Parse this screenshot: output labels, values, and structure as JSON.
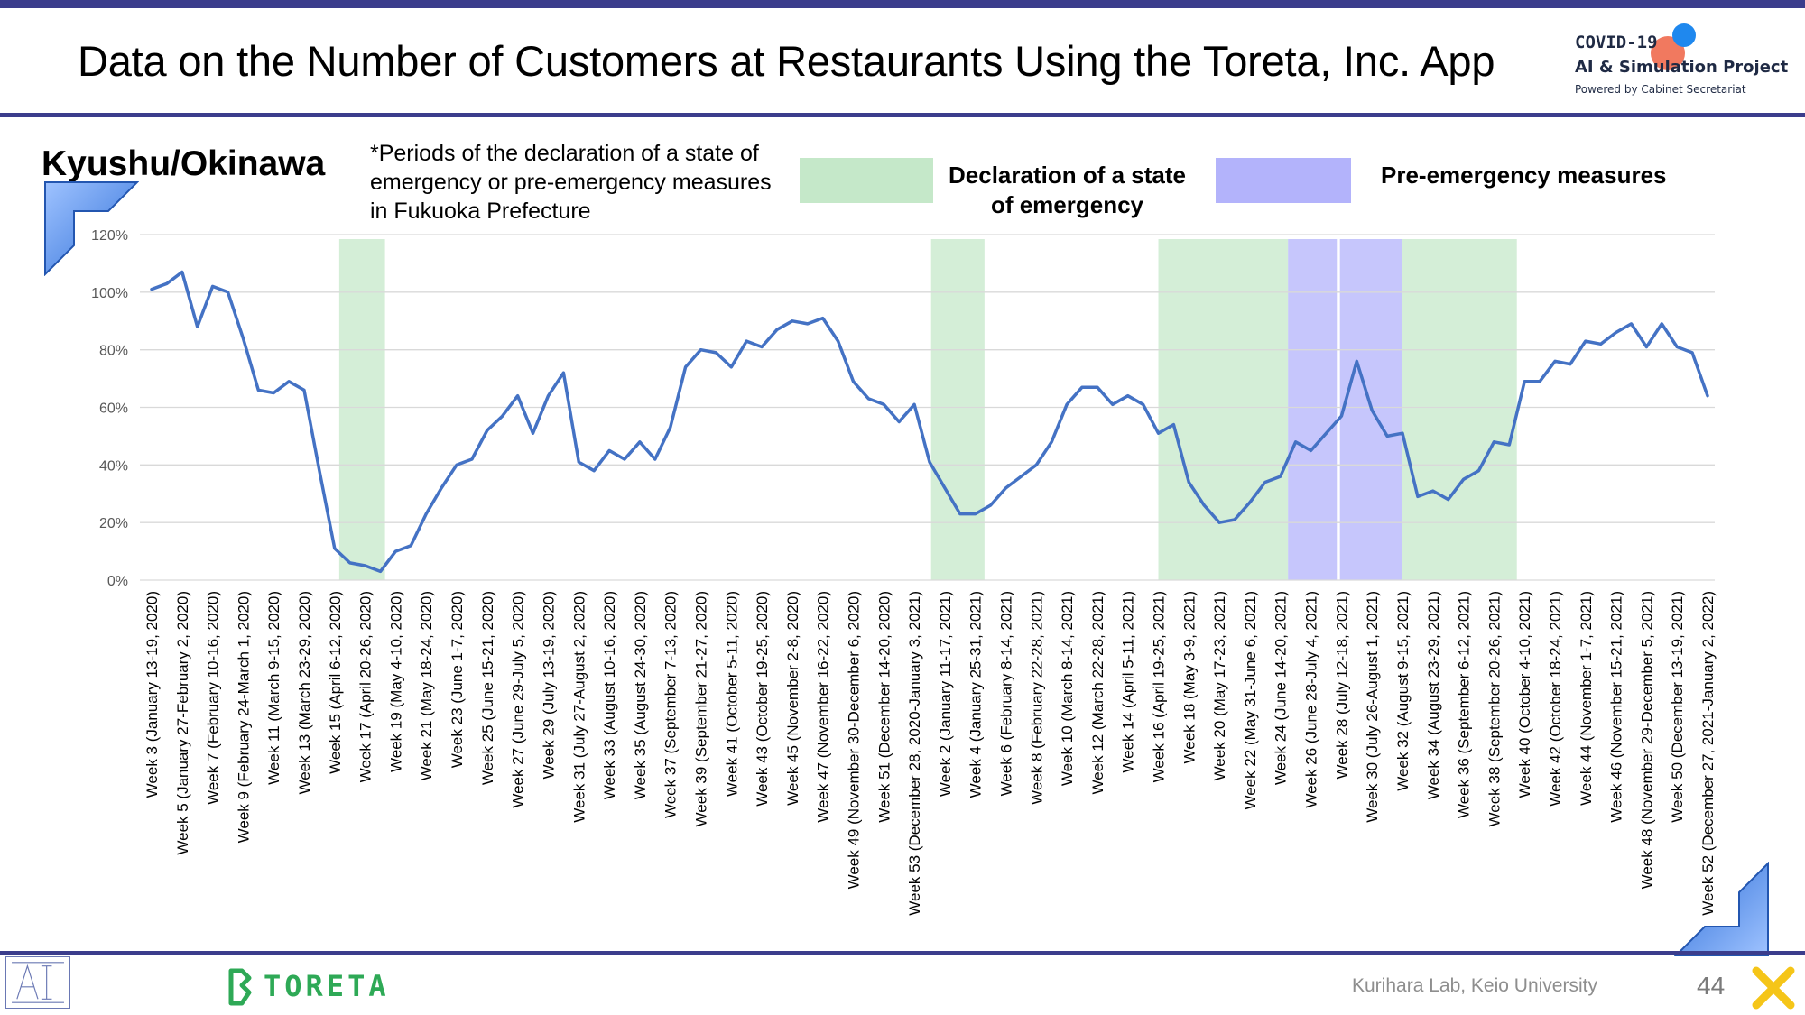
{
  "page": {
    "title": "Data on the Number of Customers at Restaurants Using the Toreta, Inc. App",
    "region": "Kyushu/Okinawa",
    "note": "*Periods of the declaration of a state of emergency or pre-emergency measures in Fukuoka Prefecture",
    "legend_emergency": "Declaration of a state of emergency",
    "legend_pre": "Pre-emergency measures",
    "footer_lab": "Kurihara Lab, Keio University",
    "page_number": "44",
    "toreta_brand": "TORETA",
    "logo_line1": "COVID-19",
    "logo_line2": "AI & Simulation Project",
    "logo_line3": "Powered by Cabinet Secretariat"
  },
  "colors": {
    "line": "#4472c4",
    "emergency": "#c5e8c9",
    "pre_emergency": "#b3b3fb",
    "accent": "#3b3d8c",
    "brand_green": "#2ea956"
  },
  "chart_data": {
    "type": "line",
    "ylim": [
      0,
      120
    ],
    "yticks": [
      "0%",
      "20%",
      "40%",
      "60%",
      "80%",
      "100%",
      "120%"
    ],
    "ytick_values": [
      0,
      20,
      40,
      60,
      80,
      100,
      120
    ],
    "grid": true,
    "x_tick_labels": [
      "Week 3 (January 13-19, 2020)",
      "Week 5 (January 27-February 2, 2020)",
      "Week 7 (February 10-16, 2020)",
      "Week 9 (February 24-March 1, 2020)",
      "Week 11 (March 9-15, 2020)",
      "Week 13 (March 23-29, 2020)",
      "Week 15 (April 6-12, 2020)",
      "Week 17 (April 20-26, 2020)",
      "Week 19 (May 4-10, 2020)",
      "Week 21 (May 18-24, 2020)",
      "Week 23 (June 1-7, 2020)",
      "Week 25 (June 15-21, 2020)",
      "Week 27 (June 29-July 5, 2020)",
      "Week 29 (July 13-19, 2020)",
      "Week 31 (July 27-August 2, 2020)",
      "Week 33 (August 10-16, 2020)",
      "Week 35 (August 24-30, 2020)",
      "Week 37 (September 7-13, 2020)",
      "Week 39 (September 21-27, 2020)",
      "Week 41 (October 5-11, 2020)",
      "Week 43 (October 19-25, 2020)",
      "Week 45 (November 2-8, 2020)",
      "Week 47 (November 16-22, 2020)",
      "Week 49 (November 30-December 6, 2020)",
      "Week 51 (December 14-20, 2020)",
      "Week 53 (December 28, 2020-January 3, 2021)",
      "Week 2 (January 11-17, 2021)",
      "Week 4 (January 25-31, 2021)",
      "Week 6 (February 8-14, 2021)",
      "Week 8 (February 22-28, 2021)",
      "Week 10 (March 8-14, 2021)",
      "Week 12 (March 22-28, 2021)",
      "Week 14 (April 5-11, 2021)",
      "Week 16 (April 19-25, 2021)",
      "Week 18 (May 3-9, 2021)",
      "Week 20 (May 17-23, 2021)",
      "Week 22 (May 31-June 6, 2021)",
      "Week 24 (June 14-20, 2021)",
      "Week 26 (June 28-July 4, 2021)",
      "Week 28 (July 12-18, 2021)",
      "Week 30 (July 26-August 1, 2021)",
      "Week 32 (August 9-15, 2021)",
      "Week 34 (August 23-29, 2021)",
      "Week 36 (September 6-12, 2021)",
      "Week 38 (September 20-26, 2021)",
      "Week 40 (October 4-10, 2021)",
      "Week 42 (October 18-24, 2021)",
      "Week 44 (November 1-7, 2021)",
      "Week 46 (November 15-21, 2021)",
      "Week 48 (November 29-December 5, 2021)",
      "Week 50 (December 13-19, 2021)",
      "Week 52 (December 27, 2021-January 2, 2022)"
    ],
    "series": [
      {
        "values": [
          101,
          103,
          107,
          88,
          102,
          100,
          84,
          66,
          65,
          69,
          66,
          38,
          11,
          6,
          5,
          3,
          10,
          12,
          23,
          32,
          40,
          42,
          52,
          57,
          64,
          51,
          64,
          72,
          41,
          38,
          45,
          42,
          48,
          42,
          53,
          74,
          80,
          79,
          74,
          83,
          81,
          87,
          90,
          89,
          91,
          83,
          69,
          63,
          61,
          55,
          61,
          41,
          32,
          23,
          23,
          26,
          32,
          36,
          40,
          48,
          61,
          67,
          67,
          61,
          64,
          61,
          51,
          54,
          34,
          26,
          20,
          21,
          27,
          34,
          36,
          48,
          45,
          51,
          57,
          76,
          59,
          50,
          51,
          29,
          31,
          28,
          35,
          38,
          48,
          47,
          69,
          69,
          76,
          75,
          83,
          82,
          86,
          89,
          81,
          89,
          81,
          79,
          64
        ]
      }
    ],
    "shaded_periods": [
      {
        "type": "emergency",
        "from": 12.3,
        "to": 15.3
      },
      {
        "type": "emergency",
        "from": 51.1,
        "to": 54.6
      },
      {
        "type": "emergency",
        "from": 66.0,
        "to": 74.5
      },
      {
        "type": "pre_emergency",
        "from": 74.5,
        "to": 77.7
      },
      {
        "type": "pre_emergency",
        "from": 77.9,
        "to": 82.0
      },
      {
        "type": "emergency",
        "from": 82.0,
        "to": 89.5
      }
    ]
  }
}
